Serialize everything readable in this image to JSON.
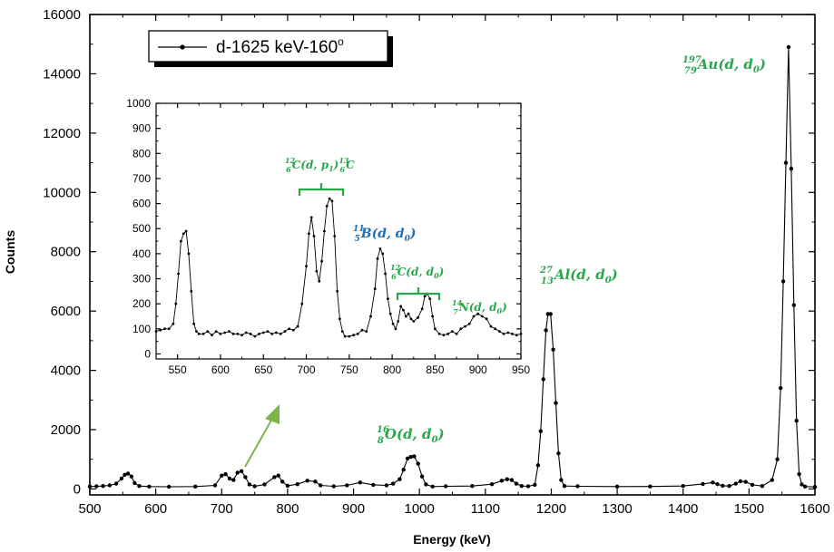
{
  "chart_data": [
    {
      "type": "line",
      "xlabel": "Energy (keV)",
      "ylabel": "Counts",
      "xlim": [
        500,
        1600
      ],
      "ylim": [
        -200,
        16000
      ],
      "x_ticks": [
        "500",
        "600",
        "700",
        "800",
        "900",
        "1000",
        "1100",
        "1200",
        "1300",
        "1400",
        "1500",
        "1600"
      ],
      "y_ticks": [
        "0",
        "2000",
        "4000",
        "6000",
        "8000",
        "10000",
        "12000",
        "14000",
        "16000"
      ],
      "legend": {
        "label": "d-1625 keV-160",
        "superscript": "o",
        "placement": "top-left"
      },
      "series": [
        {
          "name": "d-1625 keV-160°",
          "x": [
            500,
            510,
            520,
            530,
            540,
            548,
            553,
            558,
            563,
            568,
            575,
            590,
            620,
            660,
            690,
            700,
            706,
            712,
            718,
            724,
            730,
            736,
            742,
            750,
            765,
            780,
            786,
            792,
            800,
            815,
            830,
            842,
            850,
            870,
            890,
            910,
            930,
            950,
            960,
            970,
            976,
            982,
            987,
            992,
            998,
            1004,
            1010,
            1020,
            1040,
            1080,
            1110,
            1125,
            1133,
            1140,
            1147,
            1155,
            1165,
            1175,
            1180,
            1184,
            1188,
            1192,
            1195,
            1199,
            1203,
            1207,
            1211,
            1215,
            1220,
            1240,
            1300,
            1350,
            1400,
            1430,
            1445,
            1452,
            1460,
            1470,
            1480,
            1487,
            1495,
            1505,
            1520,
            1535,
            1543,
            1548,
            1552,
            1556,
            1560,
            1564,
            1568,
            1572,
            1576,
            1580,
            1585,
            1600
          ],
          "y": [
            80,
            90,
            100,
            120,
            180,
            350,
            480,
            520,
            420,
            200,
            100,
            80,
            75,
            80,
            120,
            450,
            500,
            350,
            300,
            550,
            600,
            400,
            150,
            90,
            150,
            400,
            450,
            250,
            110,
            160,
            280,
            250,
            120,
            90,
            120,
            220,
            140,
            120,
            180,
            330,
            650,
            1030,
            1080,
            1100,
            850,
            420,
            150,
            80,
            90,
            100,
            160,
            280,
            330,
            300,
            180,
            100,
            90,
            140,
            800,
            1950,
            3700,
            5350,
            5900,
            5900,
            4700,
            2900,
            1200,
            300,
            100,
            90,
            80,
            85,
            100,
            170,
            220,
            160,
            110,
            100,
            180,
            260,
            240,
            140,
            100,
            300,
            1000,
            3400,
            7000,
            11000,
            14900,
            10800,
            6200,
            2300,
            500,
            150,
            80,
            70
          ]
        }
      ],
      "annotations": [
        {
          "text": "16 8 O(d, d0)",
          "x": 960,
          "y": 1700
        },
        {
          "text": "27 13 Al(d, d0)",
          "x": 1197,
          "y": 6900
        },
        {
          "text": "197 79 Au(d, d0)",
          "x": 1540,
          "y": 14100
        }
      ]
    },
    {
      "type": "line",
      "xlim": [
        525,
        950
      ],
      "ylim": [
        -20,
        1000
      ],
      "x_ticks": [
        "550",
        "600",
        "650",
        "700",
        "750",
        "800",
        "850",
        "900",
        "950"
      ],
      "y_ticks": [
        "0",
        "100",
        "200",
        "300",
        "400",
        "500",
        "600",
        "700",
        "800",
        "900",
        "1000"
      ],
      "series": [
        {
          "name": "d-1625 keV-160°",
          "x": [
            525,
            530,
            535,
            540,
            545,
            548,
            551,
            554,
            557,
            560,
            563,
            566,
            569,
            572,
            575,
            580,
            585,
            590,
            595,
            600,
            605,
            610,
            615,
            620,
            625,
            630,
            635,
            640,
            645,
            650,
            655,
            660,
            665,
            670,
            675,
            680,
            685,
            690,
            695,
            700,
            703,
            706,
            709,
            712,
            715,
            718,
            721,
            724,
            727,
            730,
            733,
            736,
            739,
            742,
            745,
            750,
            755,
            760,
            765,
            770,
            775,
            780,
            783,
            786,
            789,
            792,
            795,
            798,
            801,
            804,
            807,
            810,
            813,
            816,
            819,
            822,
            825,
            830,
            835,
            838,
            841,
            844,
            847,
            850,
            855,
            860,
            865,
            870,
            875,
            880,
            885,
            890,
            895,
            900,
            905,
            910,
            915,
            920,
            925,
            930,
            935,
            940,
            945,
            950
          ],
          "y": [
            90,
            95,
            100,
            100,
            120,
            200,
            320,
            450,
            480,
            490,
            400,
            250,
            120,
            90,
            80,
            80,
            90,
            75,
            90,
            80,
            85,
            90,
            80,
            80,
            75,
            85,
            80,
            70,
            80,
            85,
            90,
            80,
            85,
            80,
            90,
            100,
            95,
            110,
            200,
            350,
            480,
            545,
            470,
            330,
            290,
            370,
            490,
            590,
            620,
            610,
            470,
            250,
            140,
            90,
            70,
            70,
            75,
            80,
            95,
            90,
            150,
            260,
            380,
            420,
            400,
            320,
            220,
            160,
            120,
            100,
            130,
            190,
            175,
            150,
            160,
            140,
            130,
            145,
            180,
            230,
            240,
            220,
            150,
            100,
            80,
            75,
            80,
            90,
            80,
            100,
            110,
            120,
            150,
            160,
            150,
            140,
            110,
            100,
            90,
            80,
            85,
            80,
            75,
            80
          ]
        }
      ],
      "annotations": [
        {
          "text": "12 6 C(d, p1) 13 6 C",
          "x": 710,
          "y": 700
        },
        {
          "text": "11 5 B(d, d0)",
          "x": 778,
          "y": 460
        },
        {
          "text": "12 6 C(d, d0)",
          "x": 810,
          "y": 275
        },
        {
          "text": "14 7 N(d, d0)",
          "x": 880,
          "y": 145
        }
      ]
    }
  ]
}
